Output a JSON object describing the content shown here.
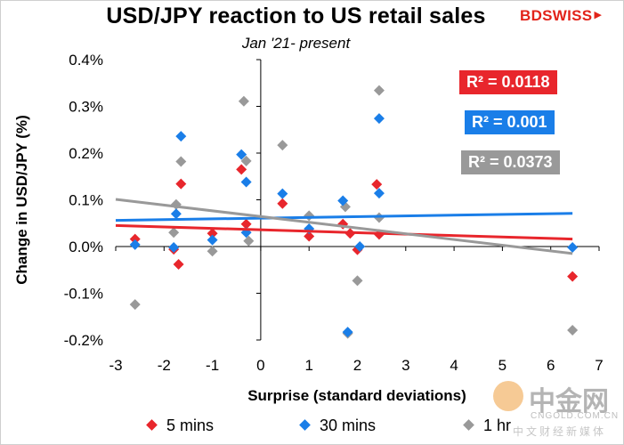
{
  "brand": {
    "part1": "BD",
    "part2": "SWISS",
    "arrow": "▶"
  },
  "watermark": {
    "cn_name": "中金网",
    "url": "CNGOLD.COM.CN",
    "tagline": "中文财经新媒体"
  },
  "chart_data": {
    "type": "scatter",
    "title": "USD/JPY reaction to US retail sales",
    "subtitle": "Jan '21- present",
    "xlabel": "Surprise (standard deviations)",
    "ylabel": "Change in USD/JPY  (%)",
    "xlim": [
      -3,
      7
    ],
    "ylim": [
      -0.2,
      0.4
    ],
    "x_ticks": [
      -3,
      -2,
      -1,
      0,
      1,
      2,
      3,
      4,
      5,
      6,
      7
    ],
    "y_ticks": [
      -0.2,
      -0.1,
      0.0,
      0.1,
      0.2,
      0.3,
      0.4
    ],
    "x_tick_labels": [
      "-3",
      "-2",
      "-1",
      "0",
      "1",
      "2",
      "3",
      "4",
      "5",
      "6",
      "7"
    ],
    "y_tick_labels": [
      "-0.2%",
      "-0.1%",
      "0.0%",
      "0.1%",
      "0.2%",
      "0.3%",
      "0.4%"
    ],
    "grid": false,
    "legend_position": "bottom",
    "series": [
      {
        "name": "5 mins",
        "color": "#e8262c",
        "marker": "diamond",
        "x": [
          -2.6,
          -1.8,
          -1.7,
          -1.65,
          -1.0,
          -0.4,
          -0.3,
          0.45,
          1.0,
          1.7,
          1.85,
          2.0,
          2.4,
          2.45,
          6.45
        ],
        "y": [
          0.016,
          -0.006,
          -0.038,
          0.134,
          0.028,
          0.165,
          0.048,
          0.092,
          0.022,
          0.048,
          0.028,
          -0.007,
          0.133,
          0.026,
          -0.064
        ],
        "r2_label": "R² = 0.0118",
        "trend": {
          "x": [
            -3,
            6.45
          ],
          "y": [
            0.045,
            0.016
          ]
        }
      },
      {
        "name": "30 mins",
        "color": "#1a7ee8",
        "marker": "diamond",
        "x": [
          -2.6,
          -1.8,
          -1.75,
          -1.65,
          -1.0,
          -0.4,
          -0.3,
          -0.3,
          0.45,
          1.0,
          1.7,
          1.8,
          2.05,
          2.45,
          2.45,
          6.45
        ],
        "y": [
          0.004,
          -0.002,
          0.07,
          0.236,
          0.014,
          0.197,
          0.138,
          0.03,
          0.113,
          0.038,
          0.098,
          -0.183,
          0.0,
          0.114,
          0.274,
          -0.002
        ],
        "r2_label": "R² = 0.001",
        "trend": {
          "x": [
            -3,
            6.45
          ],
          "y": [
            0.056,
            0.071
          ]
        }
      },
      {
        "name": "1 hr",
        "color": "#999999",
        "marker": "diamond",
        "x": [
          -2.6,
          -1.8,
          -1.75,
          -1.65,
          -1.0,
          -0.35,
          -0.3,
          -0.25,
          0.45,
          1.0,
          1.75,
          1.8,
          2.0,
          2.45,
          2.45,
          6.45
        ],
        "y": [
          -0.124,
          0.03,
          0.09,
          0.182,
          -0.01,
          0.311,
          0.183,
          0.012,
          0.217,
          0.066,
          0.085,
          -0.186,
          -0.073,
          0.334,
          0.062,
          -0.179
        ],
        "r2_label": "R² = 0.0373",
        "trend": {
          "x": [
            -3,
            6.45
          ],
          "y": [
            0.101,
            -0.015
          ]
        }
      }
    ]
  }
}
